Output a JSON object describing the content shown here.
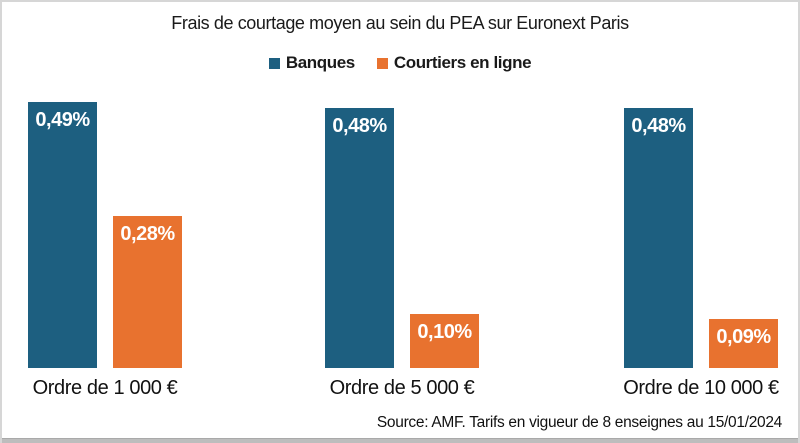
{
  "title": "Frais de courtage moyen au sein du PEA sur Euronext Paris",
  "source": "Source: AMF. Tarifs en vigueur de 8 enseignes au 15/01/2024",
  "colors": {
    "banques": "#1d5f80",
    "courtiers": "#e8722f",
    "value_label": "#ffffff",
    "text": "#1a1a1a",
    "frame_border": "#d6d6d6",
    "bottom_strip": "#bdbdbd"
  },
  "chart_data": {
    "type": "bar",
    "categories": [
      "Ordre de 1 000 €",
      "Ordre de 5 000 €",
      "Ordre de 10 000 €"
    ],
    "series": [
      {
        "name": "Banques",
        "color": "#1d5f80",
        "values": [
          0.49,
          0.48,
          0.48
        ],
        "value_labels": [
          "0,49%",
          "0,48%",
          "0,48%"
        ]
      },
      {
        "name": "Courtiers en ligne",
        "color": "#e8722f",
        "values": [
          0.28,
          0.1,
          0.09
        ],
        "value_labels": [
          "0,28%",
          "0,10%",
          "0,09%"
        ]
      }
    ],
    "unit": "%",
    "ylim": [
      0,
      0.675
    ],
    "grid": false,
    "axes_shown": false,
    "legend_position": "top"
  }
}
